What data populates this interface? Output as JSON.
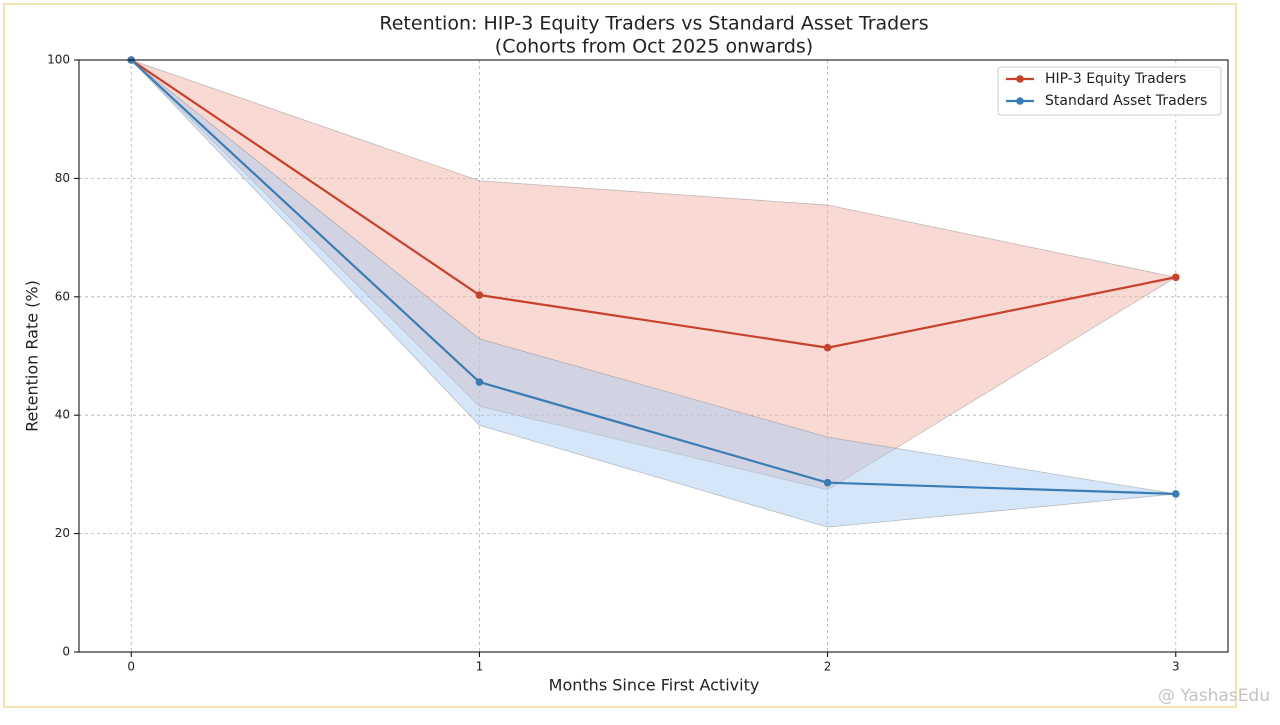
{
  "chart_data": {
    "type": "line",
    "title": "Retention: HIP-3 Equity Traders vs Standard Asset Traders",
    "subtitle": "(Cohorts from Oct 2025 onwards)",
    "x_label": "Months Since First Activity",
    "y_label": "Retention Rate (%)",
    "x": [
      0,
      1,
      2,
      3
    ],
    "series": [
      {
        "name": "HIP-3 Equity Traders",
        "color": "#c8412c",
        "band_color": "#f2b3aa",
        "values": [
          100,
          60.3,
          51.4,
          63.3
        ],
        "upper": [
          100,
          79.6,
          75.5,
          63.3
        ],
        "lower": [
          100,
          41.5,
          27.4,
          63.3
        ]
      },
      {
        "name": "Standard Asset Traders",
        "color": "#3a7db5",
        "band_color": "#a9cdef",
        "values": [
          100,
          45.6,
          28.6,
          26.7
        ],
        "upper": [
          100,
          52.9,
          36.3,
          26.7
        ],
        "lower": [
          100,
          38.3,
          21.1,
          26.7
        ]
      }
    ],
    "xlim": [
      -0.15,
      3.15
    ],
    "xticks": [
      0,
      1,
      2,
      3
    ],
    "ylim": [
      0,
      100
    ],
    "yticks": [
      0,
      20,
      40,
      60,
      80,
      100
    ],
    "grid": true,
    "legend": "upper right",
    "watermark": "@ YashasEdu"
  }
}
